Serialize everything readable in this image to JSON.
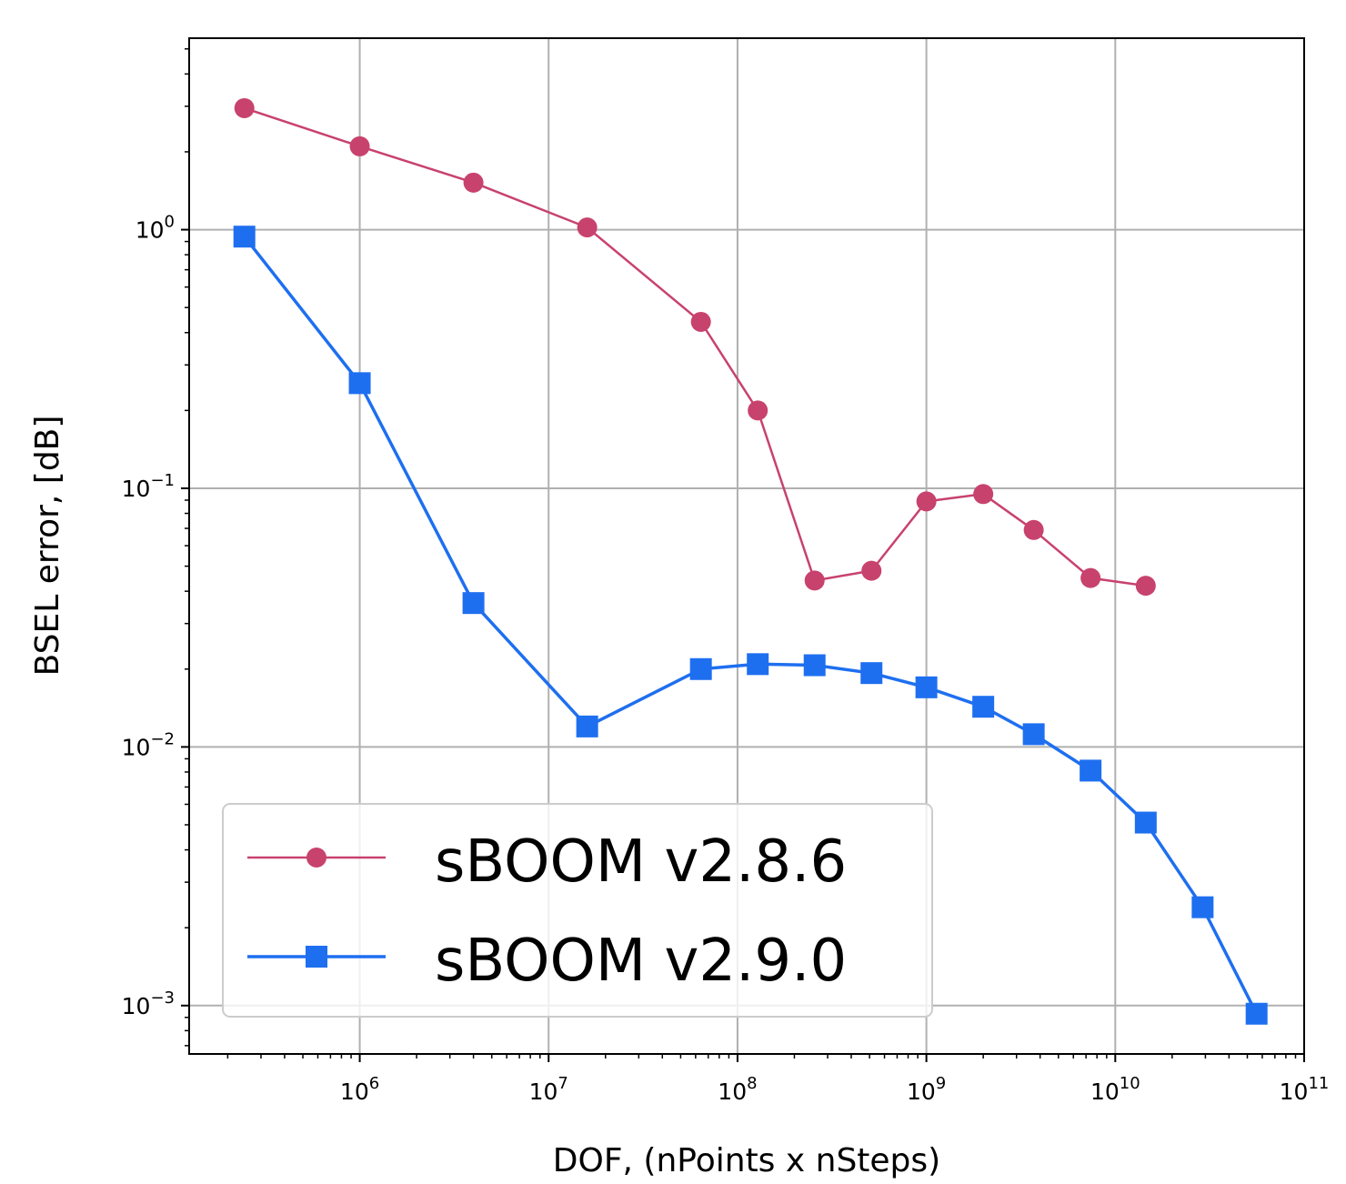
{
  "chart_data": {
    "type": "line",
    "xlabel": "DOF, (nPoints x nSteps)",
    "ylabel": "BSEL error, [dB]",
    "xscale": "log",
    "yscale": "log",
    "xlim": [
      125000,
      100000000000
    ],
    "ylim": [
      0.00065,
      5.5
    ],
    "grid": true,
    "legend_position": "lower-left",
    "x_ticks": [
      {
        "value": 1000000,
        "base": "10",
        "exp": "6"
      },
      {
        "value": 10000000,
        "base": "10",
        "exp": "7"
      },
      {
        "value": 100000000,
        "base": "10",
        "exp": "8"
      },
      {
        "value": 1000000000,
        "base": "10",
        "exp": "9"
      },
      {
        "value": 10000000000,
        "base": "10",
        "exp": "10"
      },
      {
        "value": 100000000000,
        "base": "10",
        "exp": "11"
      }
    ],
    "y_ticks": [
      {
        "value": 1,
        "base": "10",
        "exp": "0"
      },
      {
        "value": 0.1,
        "base": "10",
        "exp": "−1"
      },
      {
        "value": 0.01,
        "base": "10",
        "exp": "−2"
      },
      {
        "value": 0.001,
        "base": "10",
        "exp": "−3"
      }
    ],
    "series": [
      {
        "name": "sBOOM v2.8.6",
        "color": "#c8426e",
        "marker": "circle",
        "points": [
          [
            245000,
            2.95
          ],
          [
            1000000,
            2.1
          ],
          [
            4000000,
            1.52
          ],
          [
            16000000,
            1.02
          ],
          [
            64000000,
            0.44
          ],
          [
            128000000,
            0.2
          ],
          [
            256000000,
            0.044
          ],
          [
            512000000,
            0.048
          ],
          [
            1000000000,
            0.089
          ],
          [
            2000000000,
            0.095
          ],
          [
            3700000000,
            0.069
          ],
          [
            7400000000,
            0.045
          ],
          [
            14500000000,
            0.042
          ]
        ]
      },
      {
        "name": "sBOOM v2.9.0",
        "color": "#1e6ff0",
        "marker": "square",
        "points": [
          [
            245000,
            0.94
          ],
          [
            1000000,
            0.255
          ],
          [
            4000000,
            0.036
          ],
          [
            16000000,
            0.012
          ],
          [
            64000000,
            0.02
          ],
          [
            128000000,
            0.0209
          ],
          [
            256000000,
            0.0207
          ],
          [
            512000000,
            0.0193
          ],
          [
            1000000000,
            0.017
          ],
          [
            2000000000,
            0.0143
          ],
          [
            3700000000,
            0.0112
          ],
          [
            7400000000,
            0.0081
          ],
          [
            14500000000,
            0.0051
          ],
          [
            29000000000,
            0.0024
          ],
          [
            56000000000,
            0.00093
          ]
        ]
      }
    ]
  }
}
